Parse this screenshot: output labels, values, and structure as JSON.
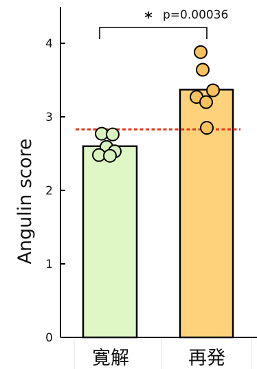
{
  "chart_data": {
    "type": "bar",
    "categories": [
      "寛解",
      "再発"
    ],
    "values": [
      2.6,
      3.37
    ],
    "ylabel": "Angulin score",
    "xlabel": "",
    "title": "",
    "ylim": [
      0,
      4.5
    ],
    "yticks": [
      "0",
      "1",
      "2",
      "3",
      "4"
    ],
    "threshold": 2.83,
    "points": [
      [
        2.77,
        2.76,
        2.59,
        2.53,
        2.48,
        2.47
      ],
      [
        3.88,
        3.64,
        3.36,
        3.27,
        3.2,
        2.85
      ]
    ],
    "significance": {
      "star": "*",
      "p_label": "p=0.00036"
    },
    "colors": {
      "bar_remission": "#dff6c5",
      "bar_relapse": "#fdd27a",
      "point_remission": "#d8f2bd",
      "point_relapse": "#f7c25c",
      "threshold": "#e3361a",
      "outline": "#000000"
    }
  }
}
